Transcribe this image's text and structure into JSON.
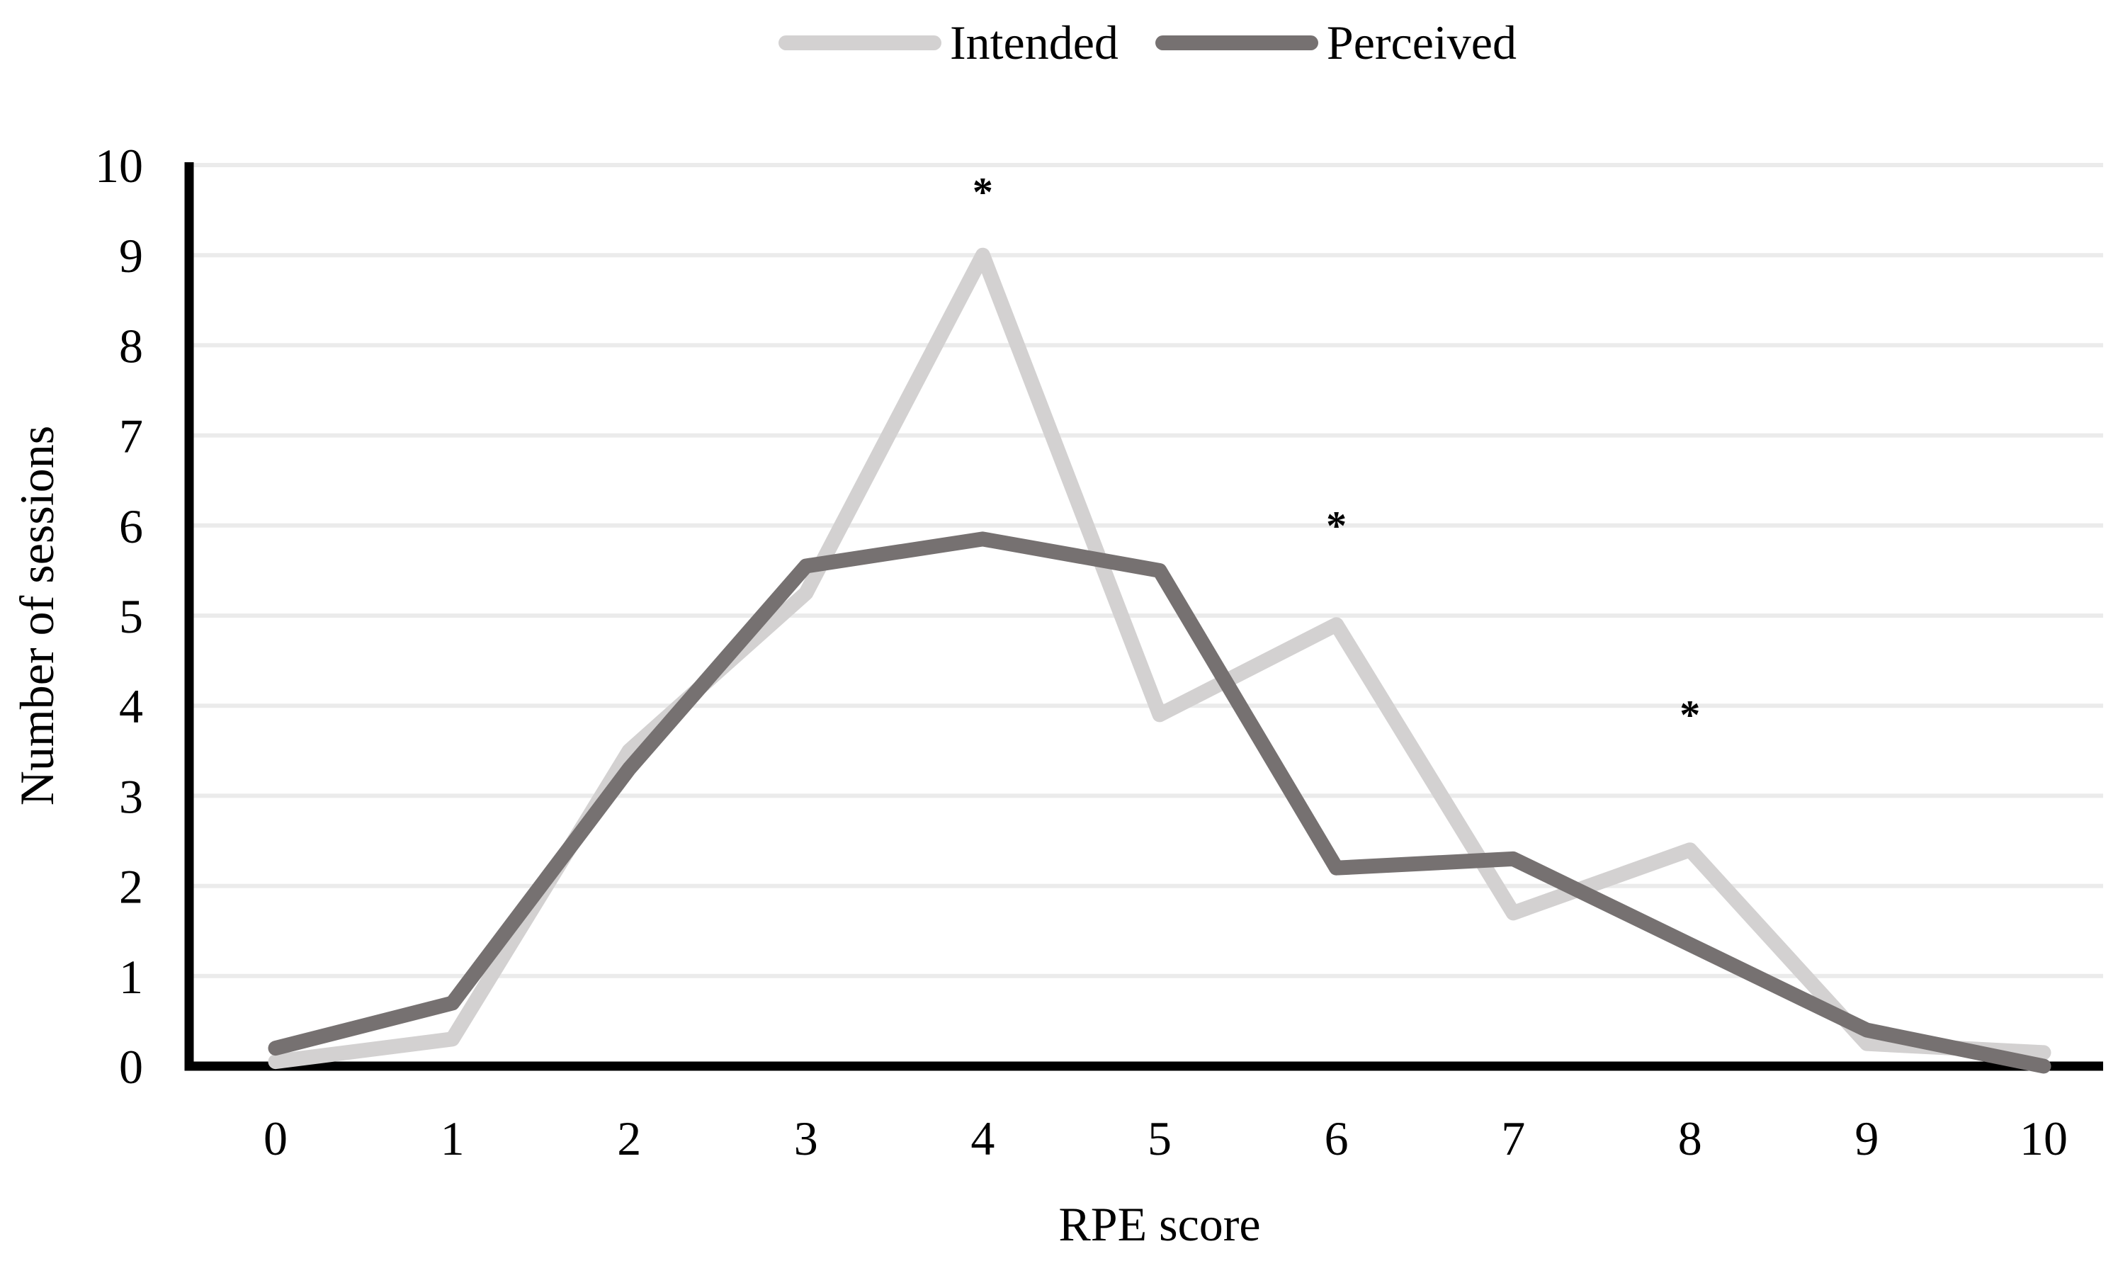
{
  "chart_data": {
    "type": "line",
    "x": [
      0,
      1,
      2,
      3,
      4,
      5,
      6,
      7,
      8,
      9,
      10
    ],
    "series": [
      {
        "name": "Intended",
        "color": "#d3d1d1",
        "values": [
          0.05,
          0.3,
          3.5,
          5.25,
          9.0,
          3.9,
          4.9,
          1.7,
          2.4,
          0.25,
          0.15
        ]
      },
      {
        "name": "Perceived",
        "color": "#767171",
        "values": [
          0.2,
          0.7,
          3.3,
          5.55,
          5.85,
          5.5,
          2.2,
          2.3,
          1.35,
          0.4,
          0.0
        ]
      }
    ],
    "annotations": [
      {
        "symbol": "*",
        "x": 4,
        "y": 9.7
      },
      {
        "symbol": "*",
        "x": 6,
        "y": 6.0
      },
      {
        "symbol": "*",
        "x": 8,
        "y": 3.9
      }
    ],
    "xlabel": "RPE score",
    "ylabel": "Number of sessions",
    "xlim": [
      0,
      10
    ],
    "ylim": [
      0,
      10
    ],
    "xticks": [
      "0",
      "1",
      "2",
      "3",
      "4",
      "5",
      "6",
      "7",
      "8",
      "9",
      "10"
    ],
    "yticks": [
      "0",
      "1",
      "2",
      "3",
      "4",
      "5",
      "6",
      "7",
      "8",
      "9",
      "10"
    ],
    "grid": "horizontal",
    "legend_position": "top-center",
    "colors": {
      "grid": "#ebebeb",
      "axis": "#000000",
      "text": "#000000",
      "background": "#ffffff"
    }
  },
  "legend": {
    "items": [
      {
        "label": "Intended",
        "color": "#d3d1d1"
      },
      {
        "label": "Perceived",
        "color": "#767171"
      }
    ]
  },
  "axes": {
    "x_title": "RPE score",
    "y_title": "Number of sessions"
  }
}
